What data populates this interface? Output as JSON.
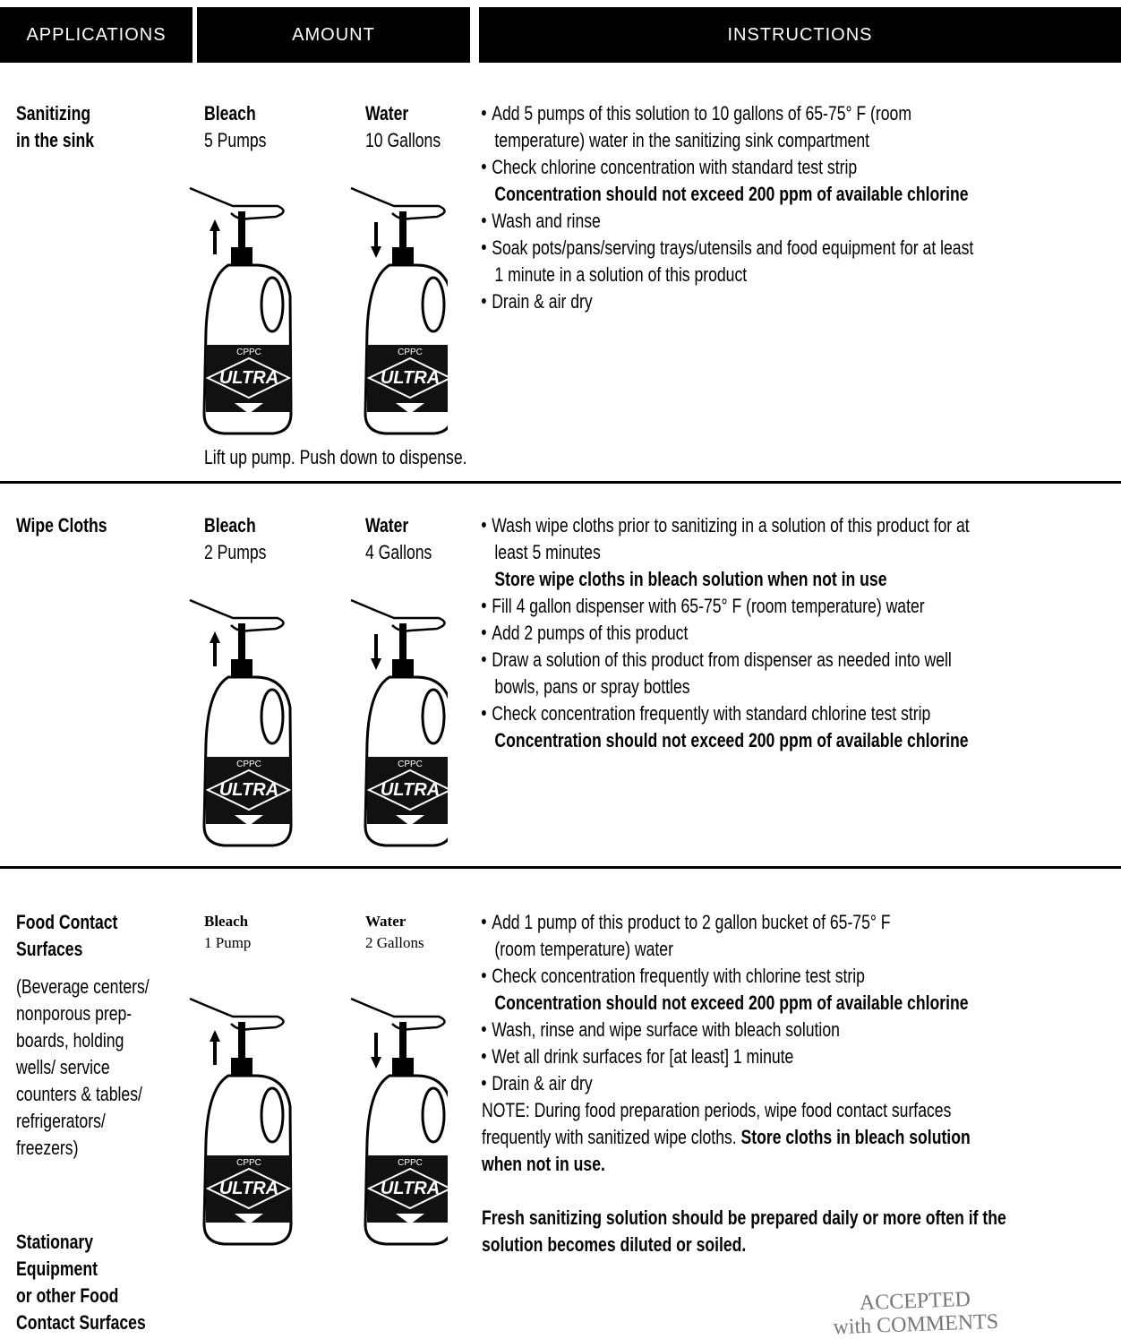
{
  "header": [
    "APPLICATIONS",
    "AMOUNT",
    "INSTRUCTIONS"
  ],
  "bottle_label": {
    "brand": "CPPC",
    "name": "ULTRA"
  },
  "rows": [
    {
      "application": {
        "title_lines": [
          "Sanitizing",
          "in the sink"
        ]
      },
      "amount": {
        "bleach": {
          "label": "Bleach",
          "amount": "5 Pumps"
        },
        "water": {
          "label": "Water",
          "amount": "10 Gallons"
        },
        "caption": "Lift up pump. Push down to dispense."
      },
      "instructions": [
        {
          "bullet": true,
          "bold": false,
          "lines": [
            "Add 5 pumps of this solution to 10 gallons of 65-75° F (room",
            "temperature) water in the sanitizing sink compartment"
          ]
        },
        {
          "bullet": true,
          "bold": false,
          "lines": [
            "Check chlorine concentration with standard test strip"
          ]
        },
        {
          "bullet": false,
          "bold": true,
          "lines": [
            "Concentration should not exceed 200 ppm of available chlorine"
          ]
        },
        {
          "bullet": true,
          "bold": false,
          "lines": [
            "Wash and rinse"
          ]
        },
        {
          "bullet": true,
          "bold": false,
          "lines": [
            "Soak pots/pans/serving trays/utensils and food equipment for at least",
            "1 minute in a solution of this product"
          ]
        },
        {
          "bullet": true,
          "bold": false,
          "lines": [
            "Drain & air dry"
          ]
        }
      ]
    },
    {
      "application": {
        "title_lines": [
          "Wipe Cloths"
        ]
      },
      "amount": {
        "bleach": {
          "label": "Bleach",
          "amount": "2 Pumps"
        },
        "water": {
          "label": "Water",
          "amount": "4 Gallons"
        }
      },
      "instructions": [
        {
          "bullet": true,
          "bold": false,
          "lines": [
            "Wash wipe cloths prior to sanitizing in a solution of this product for at",
            "least 5 minutes"
          ]
        },
        {
          "bullet": false,
          "bold": true,
          "lines": [
            "Store wipe cloths in bleach solution when not in use"
          ]
        },
        {
          "bullet": true,
          "bold": false,
          "lines": [
            "Fill 4 gallon dispenser with 65-75° F (room temperature) water"
          ]
        },
        {
          "bullet": true,
          "bold": false,
          "lines": [
            "Add 2 pumps of this product"
          ]
        },
        {
          "bullet": true,
          "bold": false,
          "lines": [
            "Draw a solution of this product from dispenser as needed into well",
            "bowls, pans or spray bottles"
          ]
        },
        {
          "bullet": true,
          "bold": false,
          "lines": [
            "Check concentration frequently with standard chlorine test strip"
          ]
        },
        {
          "bullet": false,
          "bold": true,
          "lines": [
            "Concentration should not exceed 200 ppm of available chlorine"
          ]
        }
      ]
    },
    {
      "application": {
        "title_lines": [
          "Food Contact",
          "Surfaces"
        ],
        "note_lines": [
          "(Beverage centers/",
          "nonporous prep-",
          "boards, holding",
          "wells/ service",
          "counters & tables/",
          "refrigerators/",
          "freezers)"
        ],
        "subtitle_lines": [
          "Stationary",
          "Equipment",
          "or other Food",
          "Contact Surfaces"
        ]
      },
      "amount": {
        "bleach": {
          "label": "Bleach",
          "amount": "1 Pump"
        },
        "water": {
          "label": "Water",
          "amount": "2 Gallons"
        }
      },
      "instructions": [
        {
          "bullet": true,
          "bold": false,
          "lines": [
            "Add 1 pump of this product to 2 gallon bucket of 65-75° F",
            "(room temperature) water"
          ]
        },
        {
          "bullet": true,
          "bold": false,
          "lines": [
            "Check concentration frequently with chlorine test strip"
          ]
        },
        {
          "bullet": false,
          "bold": true,
          "lines": [
            "Concentration should not exceed 200 ppm of available chlorine"
          ]
        },
        {
          "bullet": true,
          "bold": false,
          "lines": [
            "Wash, rinse and wipe surface with bleach solution"
          ]
        },
        {
          "bullet": true,
          "bold": false,
          "lines": [
            "Wet all drink surfaces for [at least] 1 minute"
          ]
        },
        {
          "bullet": true,
          "bold": false,
          "lines": [
            "Drain & air dry"
          ]
        },
        {
          "bullet": false,
          "bold": false,
          "lines": [
            "NOTE: During food preparation periods, wipe food contact surfaces",
            [
              {
                "text": "frequently with sanitized wipe cloths.",
                "bold": false
              },
              {
                "text": "Store cloths in bleach solution",
                "bold": true
              }
            ],
            [
              {
                "text": "when not in use.",
                "bold": true
              }
            ]
          ]
        }
      ],
      "footnote_lines": [
        "Fresh sanitizing solution should be prepared daily or more often if the",
        "solution becomes diluted or soiled."
      ]
    }
  ],
  "stamp": {
    "lines": [
      "ACCEPTED",
      "with COMMENTS"
    ]
  }
}
